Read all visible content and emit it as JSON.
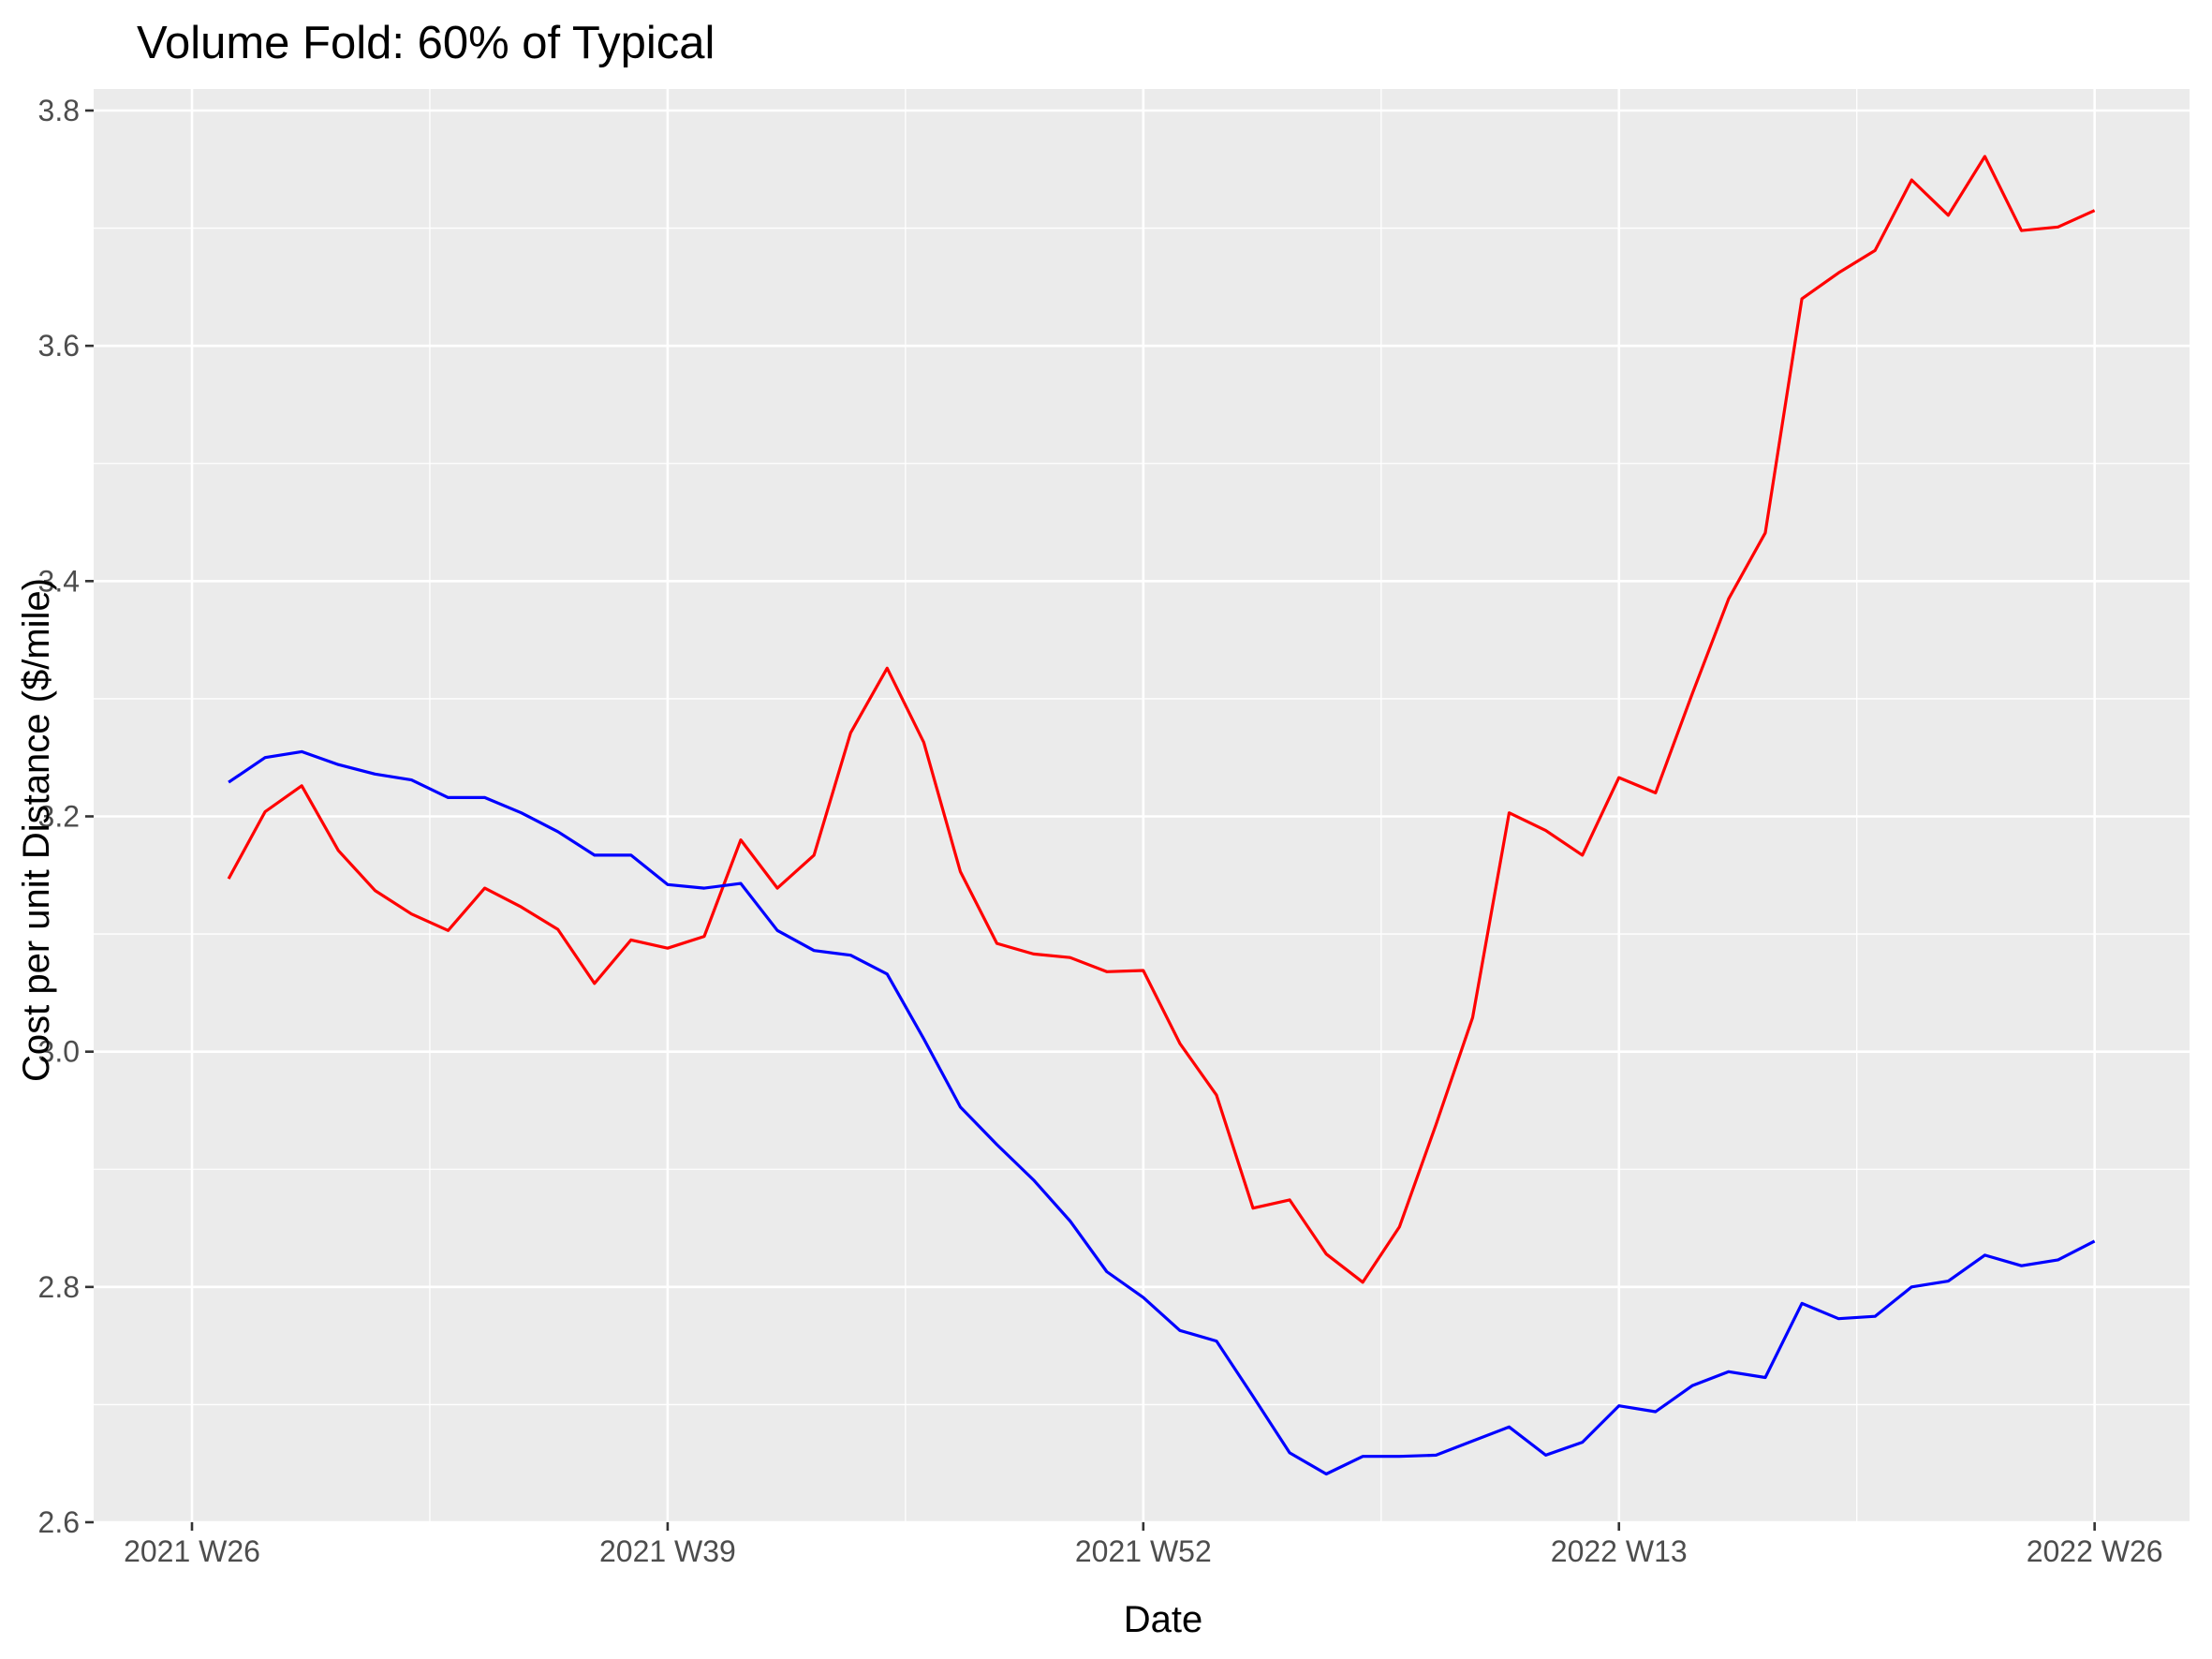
{
  "chart_data": {
    "type": "line",
    "title": "Volume Fold: 60% of Typical",
    "xlabel": "Date",
    "ylabel": "Cost per unit Distance ($/mile)",
    "x_axis": {
      "scale": "ISO week",
      "range": [
        "2021 W25",
        "2022 W27"
      ],
      "ticks": [
        "2021 W26",
        "2021 W39",
        "2021 W52",
        "2022 W13",
        "2022 W26"
      ]
    },
    "y_axis": {
      "range": [
        2.6,
        3.8
      ],
      "ticks": [
        "2.6",
        "2.8",
        "3.0",
        "3.2",
        "3.4",
        "3.6",
        "3.8"
      ]
    },
    "grid": true,
    "legend": "none",
    "x": [
      "2021 W27",
      "2021 W28",
      "2021 W29",
      "2021 W30",
      "2021 W31",
      "2021 W32",
      "2021 W33",
      "2021 W34",
      "2021 W35",
      "2021 W36",
      "2021 W37",
      "2021 W38",
      "2021 W39",
      "2021 W40",
      "2021 W41",
      "2021 W42",
      "2021 W43",
      "2021 W44",
      "2021 W45",
      "2021 W46",
      "2021 W47",
      "2021 W48",
      "2021 W49",
      "2021 W50",
      "2021 W51",
      "2021 W52",
      "2022 W01",
      "2022 W02",
      "2022 W03",
      "2022 W04",
      "2022 W05",
      "2022 W06",
      "2022 W07",
      "2022 W08",
      "2022 W09",
      "2022 W10",
      "2022 W11",
      "2022 W12",
      "2022 W13",
      "2022 W14",
      "2022 W15",
      "2022 W16",
      "2022 W17",
      "2022 W18",
      "2022 W19",
      "2022 W20",
      "2022 W21",
      "2022 W22",
      "2022 W23",
      "2022 W24",
      "2022 W25",
      "2022 W26"
    ],
    "series": [
      {
        "color": "#ff0000",
        "values": [
          3.147,
          3.204,
          3.226,
          3.171,
          3.137,
          3.117,
          3.103,
          3.139,
          3.123,
          3.104,
          3.058,
          3.095,
          3.088,
          3.098,
          3.18,
          3.139,
          3.167,
          3.271,
          3.326,
          3.263,
          3.153,
          3.092,
          3.083,
          3.08,
          3.068,
          3.069,
          3.007,
          2.963,
          2.867,
          2.874,
          2.828,
          2.804,
          2.851,
          2.938,
          3.029,
          3.203,
          3.188,
          3.167,
          3.233,
          3.22,
          3.304,
          3.385,
          3.441,
          3.64,
          3.662,
          3.681,
          3.741,
          3.711,
          3.761,
          3.698,
          3.701,
          3.715
        ]
      },
      {
        "color": "#0000ff",
        "values": [
          3.229,
          3.25,
          3.255,
          3.244,
          3.236,
          3.231,
          3.216,
          3.216,
          3.203,
          3.187,
          3.167,
          3.167,
          3.142,
          3.139,
          3.143,
          3.103,
          3.086,
          3.082,
          3.066,
          3.011,
          2.953,
          2.921,
          2.891,
          2.856,
          2.813,
          2.791,
          2.763,
          2.754,
          2.707,
          2.659,
          2.641,
          2.656,
          2.656,
          2.657,
          2.669,
          2.681,
          2.657,
          2.668,
          2.699,
          2.694,
          2.716,
          2.728,
          2.723,
          2.786,
          2.773,
          2.775,
          2.8,
          2.805,
          2.827,
          2.818,
          2.823,
          2.839
        ]
      }
    ]
  },
  "colors": {
    "panel_background": "#ebebeb",
    "grid": "#ffffff",
    "tick": "#333333",
    "tick_label": "#4d4d4d"
  }
}
